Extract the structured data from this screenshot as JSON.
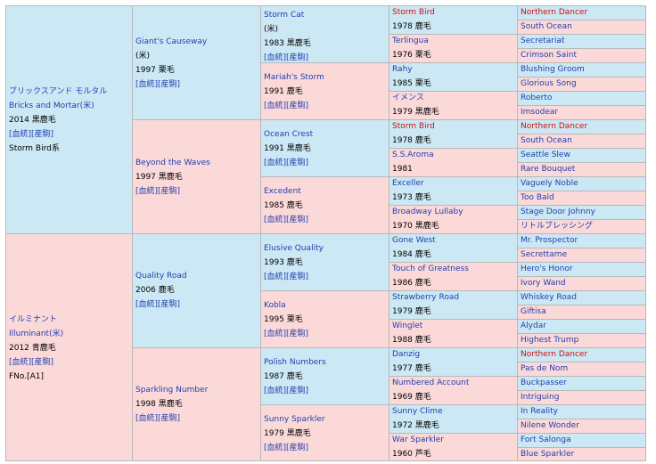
{
  "gen1": [
    {
      "name_jp": "ブリックスアンド モルタル",
      "name_en": "Bricks and Mortar(米)",
      "info": "2014 黒鹿毛",
      "link1": "[血統]",
      "link2": "[産駒]",
      "line": "Storm Bird系"
    },
    {
      "name_jp": "イルミナント",
      "name_en": "Illuminant(米)",
      "info": "2012 青鹿毛",
      "link1": "[血統]",
      "link2": "[産駒]",
      "line": "FNo.[A1]"
    }
  ],
  "gen2": [
    {
      "name": "Giant's Causeway",
      "country": "(米)",
      "info": "1997 栗毛",
      "link1": "[血統]",
      "link2": "[産駒]"
    },
    {
      "name": "Beyond the Waves",
      "info": "1997 黒鹿毛",
      "link1": "[血統]",
      "link2": "[産駒]"
    },
    {
      "name": "Quality Road",
      "info": "2006 鹿毛",
      "link1": "[血統]",
      "link2": "[産駒]"
    },
    {
      "name": "Sparkling Number",
      "info": "1998 黒鹿毛",
      "link1": "[血統]",
      "link2": "[産駒]"
    }
  ],
  "gen3": [
    {
      "name": "Storm Cat",
      "country": "(米)",
      "info": "1983 黒鹿毛",
      "link1": "[血統]",
      "link2": "[産駒]"
    },
    {
      "name": "Mariah's Storm",
      "info": "1991 鹿毛",
      "link1": "[血統]",
      "link2": "[産駒]"
    },
    {
      "name": "Ocean Crest",
      "info": "1991 黒鹿毛",
      "link1": "[血統]",
      "link2": "[産駒]"
    },
    {
      "name": "Excedent",
      "info": "1985 鹿毛",
      "link1": "[血統]",
      "link2": "[産駒]"
    },
    {
      "name": "Elusive Quality",
      "info": "1993 鹿毛",
      "link1": "[血統]",
      "link2": "[産駒]"
    },
    {
      "name": "Kobla",
      "info": "1995 栗毛",
      "link1": "[血統]",
      "link2": "[産駒]"
    },
    {
      "name": "Polish Numbers",
      "info": "1987 鹿毛",
      "link1": "[血統]",
      "link2": "[産駒]"
    },
    {
      "name": "Sunny Sparkler",
      "info": "1979 黒鹿毛",
      "link1": "[血統]",
      "link2": "[産駒]"
    }
  ],
  "gen4": [
    {
      "name": "Storm Bird",
      "info": "1978 鹿毛"
    },
    {
      "name": "Terlingua",
      "info": "1976 栗毛"
    },
    {
      "name": "Rahy",
      "info": "1985 栗毛"
    },
    {
      "name": "イメンス",
      "info": "1979 黒鹿毛"
    },
    {
      "name": "Storm Bird",
      "info": "1978 鹿毛"
    },
    {
      "name": "S.S.Aroma",
      "info": "1981"
    },
    {
      "name": "Exceller",
      "info": "1973 鹿毛"
    },
    {
      "name": "Broadway Lullaby",
      "info": "1970 黒鹿毛"
    },
    {
      "name": "Gone West",
      "info": "1984 鹿毛"
    },
    {
      "name": "Touch of Greatness",
      "info": "1986 鹿毛"
    },
    {
      "name": "Strawberry Road",
      "info": "1979 鹿毛"
    },
    {
      "name": "Winglet",
      "info": "1988 鹿毛"
    },
    {
      "name": "Danzig",
      "info": "1977 鹿毛"
    },
    {
      "name": "Numbered Account",
      "info": "1969 鹿毛"
    },
    {
      "name": "Sunny Clime",
      "info": "1972 黒鹿毛"
    },
    {
      "name": "War Sparkler",
      "info": "1960 芦毛"
    }
  ],
  "gen5": [
    "Northern Dancer",
    "South Ocean",
    "Secretariat",
    "Crimson Saint",
    "Blushing Groom",
    "Glorious Song",
    "Roberto",
    "Imsodear",
    "Northern Dancer",
    "South Ocean",
    "Seattle Slew",
    "Rare Bouquet",
    "Vaguely Noble",
    "Too Bald",
    "Stage Door Johnny",
    "リトルブレッシング",
    "Mr. Prospector",
    "Secrettame",
    "Hero's Honor",
    "Ivory Wand",
    "Whiskey Road",
    "Giftisa",
    "Alydar",
    "Highest Trump",
    "Northern Dancer",
    "Pas de Nom",
    "Buckpasser",
    "Intriguing",
    "In Reality",
    "Nilene Wonder",
    "Fort Salonga",
    "Blue Sparkler"
  ],
  "colors": {
    "sire_bg": "#cce8f4",
    "dam_bg": "#fcd9d9",
    "link": "#1f3fb0",
    "highlight": "#cc1010"
  }
}
